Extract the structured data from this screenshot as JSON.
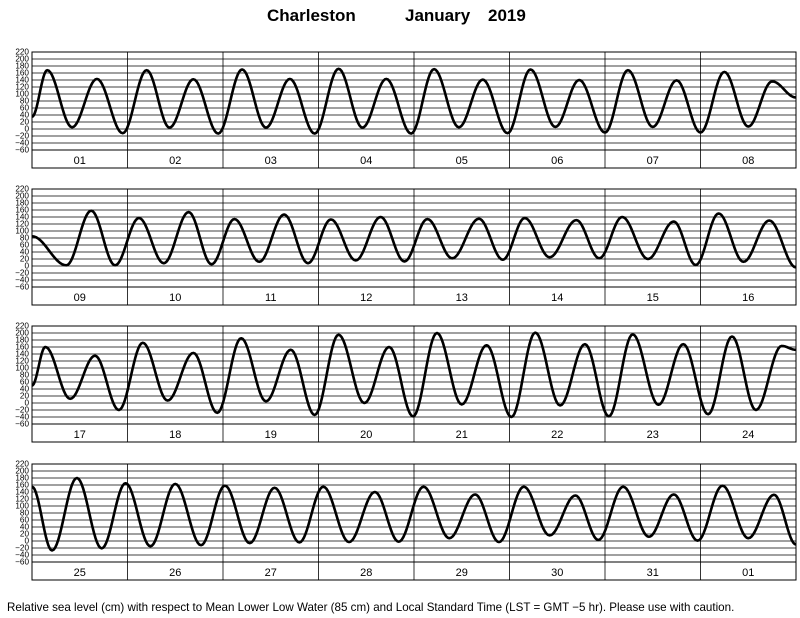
{
  "header": {
    "station": "Charleston",
    "month": "January",
    "year": "2019"
  },
  "footnote": "Relative sea level (cm) with respect to Mean Lower Low Water (85 cm) and Local Standard Time (LST = GMT −5 hr). Please use with caution.",
  "colors": {
    "line": "#000000",
    "grid": "#000000",
    "background": "#ffffff"
  },
  "chart_data": {
    "type": "line",
    "title": "Charleston January 2019",
    "ylabel": "",
    "xlabel": "",
    "ylim": [
      -60,
      220
    ],
    "yticks": [
      -60,
      -40,
      -20,
      0,
      20,
      40,
      60,
      80,
      100,
      120,
      140,
      160,
      180,
      200,
      220
    ],
    "ytick_labels": [
      "−60",
      "−40",
      "−20",
      "0",
      "20",
      "40",
      "60",
      "80",
      "100",
      "120",
      "140",
      "160",
      "180",
      "200",
      "220"
    ],
    "grid": true,
    "panels": [
      {
        "days": [
          "01",
          "02",
          "03",
          "04",
          "05",
          "06",
          "07",
          "08"
        ],
        "x": [
          0,
          0.16,
          0.42,
          0.68,
          0.95,
          1.2,
          1.44,
          1.69,
          1.95,
          2.2,
          2.45,
          2.7,
          2.96,
          3.21,
          3.46,
          3.71,
          3.97,
          4.21,
          4.47,
          4.72,
          4.98,
          5.22,
          5.48,
          5.73,
          6.0,
          6.24,
          6.5,
          6.75,
          7.0,
          7.25,
          7.5,
          7.75,
          8.0
        ],
        "y": [
          35,
          168,
          5,
          143,
          -12,
          168,
          4,
          142,
          -13,
          170,
          4,
          143,
          -13,
          172,
          4,
          143,
          -13,
          171,
          5,
          141,
          -12,
          170,
          6,
          140,
          -10,
          168,
          6,
          139,
          -10,
          163,
          7,
          136,
          90
        ]
      },
      {
        "days": [
          "09",
          "10",
          "11",
          "12",
          "13",
          "14",
          "15",
          "16"
        ],
        "x": [
          0,
          0.36,
          0.62,
          0.87,
          1.12,
          1.38,
          1.64,
          1.88,
          2.12,
          2.38,
          2.64,
          2.89,
          3.13,
          3.39,
          3.65,
          3.9,
          4.14,
          4.4,
          4.68,
          4.93,
          5.16,
          5.42,
          5.7,
          5.94,
          6.18,
          6.45,
          6.72,
          6.95,
          7.19,
          7.45,
          7.72,
          8.0
        ],
        "y": [
          85,
          2,
          158,
          2,
          137,
          8,
          154,
          5,
          134,
          12,
          147,
          8,
          133,
          16,
          140,
          13,
          134,
          22,
          135,
          18,
          137,
          25,
          131,
          22,
          140,
          20,
          127,
          3,
          150,
          12,
          130,
          -4
        ]
      },
      {
        "days": [
          "17",
          "18",
          "19",
          "20",
          "21",
          "22",
          "23",
          "24"
        ],
        "x": [
          0,
          0.14,
          0.4,
          0.66,
          0.91,
          1.16,
          1.42,
          1.69,
          1.94,
          2.19,
          2.45,
          2.71,
          2.96,
          3.21,
          3.48,
          3.74,
          3.99,
          4.24,
          4.5,
          4.76,
          5.02,
          5.27,
          5.53,
          5.79,
          6.04,
          6.29,
          6.56,
          6.82,
          7.08,
          7.33,
          7.58,
          7.85,
          8.0
        ],
        "y": [
          50,
          160,
          12,
          135,
          -20,
          172,
          7,
          143,
          -28,
          185,
          5,
          152,
          -34,
          195,
          0,
          160,
          -38,
          200,
          -4,
          165,
          -40,
          201,
          -7,
          168,
          -38,
          196,
          -5,
          168,
          -32,
          190,
          -20,
          163,
          152
        ]
      },
      {
        "days": [
          "25",
          "26",
          "27",
          "28",
          "29",
          "30",
          "31",
          "01"
        ],
        "x": [
          0,
          0.21,
          0.47,
          0.73,
          0.98,
          1.24,
          1.5,
          1.77,
          2.02,
          2.28,
          2.54,
          2.8,
          3.05,
          3.32,
          3.59,
          3.84,
          4.1,
          4.37,
          4.64,
          4.89,
          5.15,
          5.42,
          5.69,
          5.93,
          6.19,
          6.46,
          6.72,
          6.97,
          7.23,
          7.5,
          7.77,
          8.0
        ],
        "y": [
          155,
          -27,
          180,
          -21,
          165,
          -15,
          163,
          -12,
          158,
          -6,
          152,
          -4,
          155,
          -3,
          140,
          -2,
          155,
          8,
          133,
          -3,
          155,
          16,
          130,
          3,
          155,
          12,
          133,
          1,
          158,
          8,
          132,
          -10
        ]
      }
    ]
  }
}
